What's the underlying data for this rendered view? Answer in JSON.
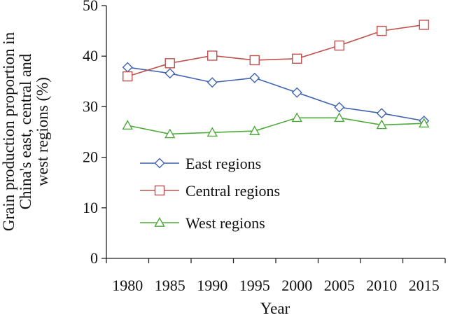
{
  "chart_data": {
    "type": "line",
    "xlabel": "Year",
    "ylabel_lines": [
      "Grain production proportion in",
      "China's east, central and",
      "west regions (%)"
    ],
    "x": [
      "1980",
      "1985",
      "1990",
      "1995",
      "2000",
      "2005",
      "2010",
      "2015"
    ],
    "ylim": [
      0,
      50
    ],
    "yticks": [
      "0",
      "10",
      "20",
      "30",
      "40",
      "50"
    ],
    "series": [
      {
        "name": "East regions",
        "color": "#3f63b0",
        "marker": "diamond",
        "values": [
          37.8,
          36.6,
          34.8,
          35.7,
          32.8,
          29.9,
          28.7,
          27.2
        ]
      },
      {
        "name": "Central regions",
        "color": "#c0504d",
        "marker": "square",
        "values": [
          36.0,
          38.6,
          40.1,
          39.2,
          39.5,
          42.1,
          45.0,
          46.2
        ]
      },
      {
        "name": "West regions",
        "color": "#4faa3c",
        "marker": "triangle",
        "values": [
          26.3,
          24.6,
          24.9,
          25.2,
          27.8,
          27.8,
          26.4,
          26.7
        ]
      }
    ],
    "legend_position": "center-left",
    "grid": false
  }
}
